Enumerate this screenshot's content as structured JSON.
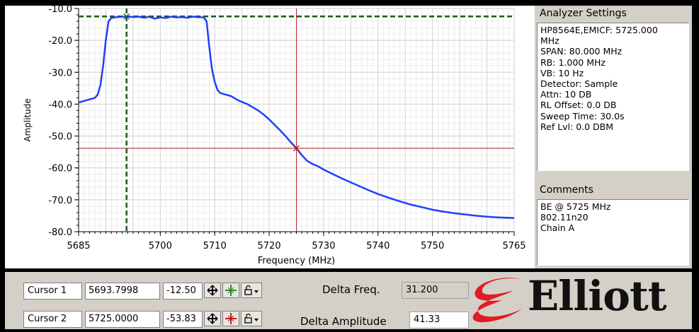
{
  "chart_data": {
    "type": "line",
    "title": "",
    "xlabel": "Frequency (MHz)",
    "ylabel": "Amplitude",
    "xlim": [
      5685,
      5765
    ],
    "ylim": [
      -80,
      -10
    ],
    "x_ticks": [
      5685,
      5700,
      5710,
      5720,
      5730,
      5740,
      5750,
      5765
    ],
    "y_ticks": [
      "-10.0",
      "-20.0",
      "-30.0",
      "-40.0",
      "-50.0",
      "-60.0",
      "-70.0",
      "-80.0"
    ],
    "grid": true,
    "series": [
      {
        "color": "#1f3fff",
        "points": [
          [
            5685,
            -39.5
          ],
          [
            5686,
            -39.0
          ],
          [
            5687,
            -38.5
          ],
          [
            5688,
            -38.0
          ],
          [
            5688.5,
            -37.0
          ],
          [
            5689,
            -34.0
          ],
          [
            5689.5,
            -28.0
          ],
          [
            5690,
            -20.0
          ],
          [
            5690.5,
            -14.0
          ],
          [
            5691,
            -13.0
          ],
          [
            5692,
            -12.7
          ],
          [
            5693,
            -12.6
          ],
          [
            5694,
            -12.5
          ],
          [
            5695,
            -12.7
          ],
          [
            5696,
            -12.6
          ],
          [
            5697,
            -12.9
          ],
          [
            5698,
            -12.6
          ],
          [
            5699,
            -13.2
          ],
          [
            5700,
            -12.8
          ],
          [
            5701,
            -13.0
          ],
          [
            5702,
            -12.6
          ],
          [
            5703,
            -12.8
          ],
          [
            5704,
            -12.7
          ],
          [
            5705,
            -12.9
          ],
          [
            5706,
            -12.6
          ],
          [
            5707,
            -12.7
          ],
          [
            5708,
            -12.8
          ],
          [
            5708.5,
            -14.0
          ],
          [
            5709,
            -22.0
          ],
          [
            5709.5,
            -29.0
          ],
          [
            5710,
            -33.0
          ],
          [
            5710.5,
            -35.5
          ],
          [
            5711,
            -36.5
          ],
          [
            5712,
            -37.0
          ],
          [
            5713,
            -37.5
          ],
          [
            5714,
            -38.5
          ],
          [
            5715,
            -39.3
          ],
          [
            5716,
            -40.0
          ],
          [
            5717,
            -41.0
          ],
          [
            5718,
            -42.0
          ],
          [
            5719,
            -43.3
          ],
          [
            5720,
            -44.8
          ],
          [
            5721,
            -46.5
          ],
          [
            5722,
            -48.2
          ],
          [
            5723,
            -50.0
          ],
          [
            5724,
            -52.0
          ],
          [
            5725,
            -53.83
          ],
          [
            5726,
            -56.0
          ],
          [
            5727,
            -57.8
          ],
          [
            5728,
            -58.8
          ],
          [
            5729,
            -59.5
          ],
          [
            5730,
            -60.5
          ],
          [
            5732,
            -62.2
          ],
          [
            5734,
            -63.8
          ],
          [
            5736,
            -65.3
          ],
          [
            5738,
            -66.8
          ],
          [
            5740,
            -68.2
          ],
          [
            5742,
            -69.4
          ],
          [
            5744,
            -70.5
          ],
          [
            5746,
            -71.5
          ],
          [
            5748,
            -72.3
          ],
          [
            5750,
            -73.1
          ],
          [
            5752,
            -73.7
          ],
          [
            5754,
            -74.2
          ],
          [
            5756,
            -74.6
          ],
          [
            5758,
            -75.0
          ],
          [
            5760,
            -75.3
          ],
          [
            5762,
            -75.5
          ],
          [
            5765,
            -75.7
          ]
        ]
      }
    ],
    "markers": [
      {
        "name": "Cursor 1",
        "x": 5693.7998,
        "y": -12.5,
        "style": "dashed",
        "color": "#1e5a1e"
      },
      {
        "name": "Cursor 2",
        "x": 5725.0,
        "y": -53.83,
        "style": "solid",
        "color": "#b82020"
      }
    ]
  },
  "settings": {
    "title": "Analyzer Settings",
    "lines": [
      "HP8564E,EMICF: 5725.000",
      "MHz",
      "SPAN: 80.000 MHz",
      "RB: 1.000 MHz",
      "VB: 10 Hz",
      "Detector: Sample",
      "Attn: 10 DB",
      "RL Offset: 0.0 DB",
      "Sweep Time: 30.0s",
      "Ref Lvl: 0.0 DBM"
    ]
  },
  "comments": {
    "title": "Comments",
    "lines": [
      "BE @ 5725 MHz",
      "802.11n20",
      "Chain A"
    ]
  },
  "cursors": [
    {
      "label": "Cursor 1",
      "freq": "5693.7998",
      "amp": "-12.50"
    },
    {
      "label": "Cursor 2",
      "freq": "5725.0000",
      "amp": "-53.83"
    }
  ],
  "delta": {
    "freq_label": "Delta Freq.",
    "freq_value": "31.200",
    "amp_label": "Delta Amplitude",
    "amp_value": "41.33"
  },
  "logo": {
    "text": "Elliott",
    "color": "#e31b23"
  }
}
